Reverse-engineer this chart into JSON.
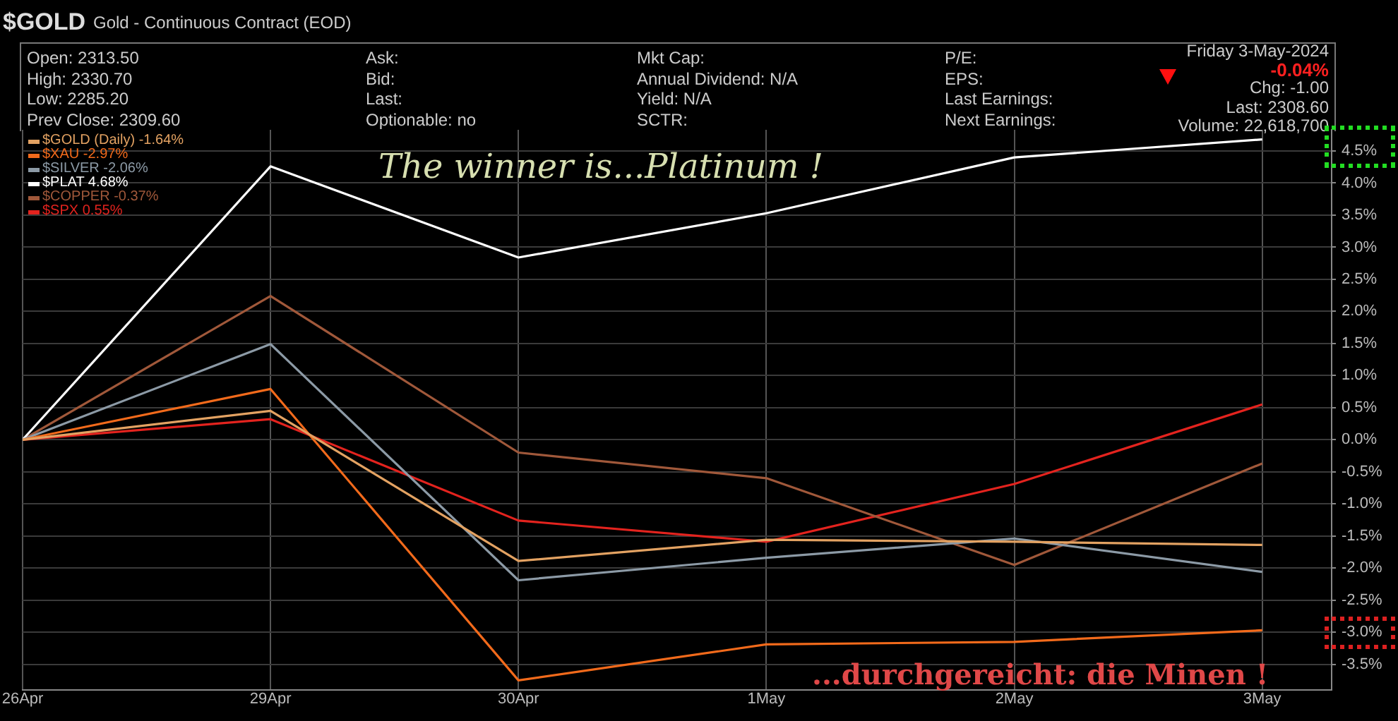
{
  "chart_data": {
    "type": "line",
    "title": "$GOLD",
    "subtitle": "Gold - Continuous Contract (EOD)",
    "annotations": [
      "Open: 2313.50",
      "High: 2330.70",
      "Low: 2285.20",
      "Prev Close: 2309.60",
      "Ask:",
      "Bid:",
      "Last:",
      "Optionable: no",
      "Mkt Cap:",
      "Annual Dividend: N/A",
      "Yield: N/A",
      "SCTR:",
      "P/E:",
      "EPS:",
      "Last Earnings:",
      "Next Earnings:",
      "Friday  3-May-2024",
      "-0.04%",
      "Chg: -1.00",
      "Last: 2308.60",
      "Volume: 22,618,700",
      "The winner is...Platinum !",
      "...durchgereicht: die Minen !"
    ],
    "categories": [
      "26Apr",
      "29Apr",
      "30Apr",
      "1May",
      "2May",
      "3May"
    ],
    "series": [
      {
        "name": "$GOLD (Daily) -1.64%",
        "color": "#e3a262",
        "values": [
          0,
          0.45,
          -1.89,
          -1.56,
          -1.59,
          -1.64
        ]
      },
      {
        "name": "$XAU -2.97%",
        "color": "#f26a1b",
        "values": [
          0,
          0.79,
          -3.75,
          -3.19,
          -3.15,
          -2.97
        ]
      },
      {
        "name": "$SILVER -2.06%",
        "color": "#8c9aa6",
        "values": [
          0,
          1.49,
          -2.19,
          -1.84,
          -1.54,
          -2.06
        ]
      },
      {
        "name": "$PLAT 4.68%",
        "color": "#ffffff",
        "values": [
          0,
          4.26,
          2.84,
          3.53,
          4.4,
          4.68
        ]
      },
      {
        "name": "$COPPER -0.37%",
        "color": "#a0583a",
        "values": [
          0,
          2.24,
          -0.2,
          -0.6,
          -1.95,
          -0.37
        ]
      },
      {
        "name": "$SPX 0.55%",
        "color": "#e3231e",
        "values": [
          0,
          0.32,
          -1.26,
          -1.59,
          -0.69,
          0.55
        ]
      }
    ],
    "ylim": [
      -3.9,
      4.83
    ],
    "yticks": [
      {
        "value": -3.5,
        "label": "-3.5%"
      },
      {
        "value": -3,
        "label": "-3.0%"
      },
      {
        "value": -2.5,
        "label": "-2.5%"
      },
      {
        "value": -2,
        "label": "-2.0%"
      },
      {
        "value": -1.5,
        "label": "-1.5%"
      },
      {
        "value": -1,
        "label": "-1.0%"
      },
      {
        "value": -0.5,
        "label": "-0.5%"
      },
      {
        "value": 0,
        "label": "0.0%"
      },
      {
        "value": 0.5,
        "label": "0.5%"
      },
      {
        "value": 1,
        "label": "1.0%"
      },
      {
        "value": 1.5,
        "label": "1.5%"
      },
      {
        "value": 2,
        "label": "2.0%"
      },
      {
        "value": 2.5,
        "label": "2.5%"
      },
      {
        "value": 3,
        "label": "3.0%"
      },
      {
        "value": 3.5,
        "label": "3.5%"
      },
      {
        "value": 4,
        "label": "4.0%"
      },
      {
        "value": 4.5,
        "label": "4.5%"
      }
    ],
    "grid": true,
    "legend": "top left",
    "marker": "none"
  }
}
